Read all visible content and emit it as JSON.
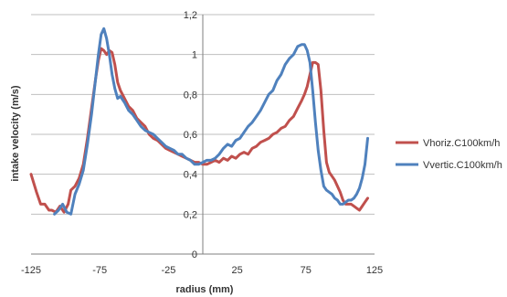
{
  "chart_data": {
    "type": "line",
    "xlabel": "radius (mm)",
    "ylabel": "intake velocity (m/s)",
    "xlim": [
      -125,
      125
    ],
    "ylim": [
      0,
      1.2
    ],
    "x_ticks": [
      "-125",
      "-75",
      "-25",
      "25",
      "75",
      "125"
    ],
    "y_ticks": [
      "0",
      "0,2",
      "0,4",
      "0,6",
      "0,8",
      "1",
      "1,2"
    ],
    "grid": "horizontal",
    "legend_position": "right",
    "series": [
      {
        "name": "Vhoriz.C100km/h",
        "color": "#c0504d",
        "x": [
          -125,
          -121,
          -118,
          -115,
          -112,
          -110,
          -107,
          -104,
          -101,
          -98,
          -96,
          -93,
          -90,
          -87,
          -84,
          -81,
          -78,
          -76,
          -74,
          -72,
          -70,
          -68,
          -66,
          -64,
          -62,
          -60,
          -57,
          -54,
          -51,
          -48,
          -45,
          -42,
          -39,
          -36,
          -33,
          -30,
          -27,
          -24,
          -21,
          -18,
          -15,
          -12,
          -9,
          -6,
          -3,
          0,
          3,
          6,
          9,
          12,
          15,
          18,
          21,
          24,
          27,
          30,
          33,
          36,
          39,
          42,
          45,
          48,
          51,
          54,
          57,
          60,
          63,
          66,
          69,
          72,
          74,
          76,
          78,
          80,
          82,
          84,
          86,
          88,
          90,
          92,
          94,
          96,
          98,
          100,
          102,
          104,
          106,
          108,
          110,
          112,
          114,
          116,
          118,
          120
        ],
        "values": [
          0.4,
          0.31,
          0.25,
          0.25,
          0.22,
          0.22,
          0.21,
          0.24,
          0.21,
          0.25,
          0.32,
          0.34,
          0.38,
          0.45,
          0.58,
          0.73,
          0.88,
          0.97,
          1.03,
          1.02,
          1.0,
          1.02,
          1.01,
          0.95,
          0.86,
          0.82,
          0.78,
          0.74,
          0.72,
          0.68,
          0.66,
          0.64,
          0.6,
          0.58,
          0.57,
          0.55,
          0.53,
          0.52,
          0.51,
          0.5,
          0.49,
          0.48,
          0.47,
          0.46,
          0.46,
          0.45,
          0.45,
          0.46,
          0.47,
          0.46,
          0.48,
          0.47,
          0.49,
          0.48,
          0.5,
          0.51,
          0.5,
          0.53,
          0.54,
          0.56,
          0.57,
          0.58,
          0.6,
          0.61,
          0.63,
          0.64,
          0.67,
          0.69,
          0.73,
          0.77,
          0.8,
          0.84,
          0.9,
          0.96,
          0.96,
          0.95,
          0.82,
          0.62,
          0.46,
          0.41,
          0.39,
          0.37,
          0.34,
          0.31,
          0.27,
          0.25,
          0.25,
          0.25,
          0.24,
          0.23,
          0.22,
          0.24,
          0.26,
          0.28
        ]
      },
      {
        "name": "Vvertic.C100km/h",
        "color": "#4f81bd",
        "x": [
          -108,
          -105,
          -102,
          -99,
          -96,
          -93,
          -90,
          -87,
          -84,
          -81,
          -78,
          -76,
          -74,
          -72,
          -70,
          -68,
          -66,
          -64,
          -62,
          -60,
          -57,
          -54,
          -51,
          -48,
          -45,
          -42,
          -39,
          -36,
          -33,
          -30,
          -27,
          -24,
          -21,
          -18,
          -15,
          -12,
          -9,
          -6,
          -3,
          0,
          3,
          6,
          9,
          12,
          15,
          18,
          21,
          24,
          27,
          30,
          33,
          36,
          39,
          42,
          45,
          48,
          51,
          54,
          57,
          60,
          63,
          66,
          69,
          72,
          74,
          76,
          78,
          80,
          82,
          84,
          86,
          88,
          90,
          92,
          94,
          96,
          98,
          100,
          102,
          104,
          106,
          108,
          110,
          112,
          114,
          116,
          118,
          120
        ],
        "values": [
          0.2,
          0.22,
          0.25,
          0.21,
          0.2,
          0.3,
          0.35,
          0.42,
          0.55,
          0.7,
          0.88,
          1.0,
          1.1,
          1.13,
          1.08,
          1.0,
          0.9,
          0.83,
          0.78,
          0.79,
          0.76,
          0.72,
          0.7,
          0.67,
          0.64,
          0.62,
          0.61,
          0.6,
          0.58,
          0.56,
          0.54,
          0.53,
          0.52,
          0.5,
          0.5,
          0.48,
          0.47,
          0.45,
          0.45,
          0.46,
          0.47,
          0.47,
          0.48,
          0.5,
          0.53,
          0.55,
          0.54,
          0.57,
          0.58,
          0.61,
          0.64,
          0.66,
          0.69,
          0.72,
          0.76,
          0.8,
          0.82,
          0.87,
          0.9,
          0.95,
          0.98,
          1.0,
          1.04,
          1.05,
          1.05,
          1.02,
          0.96,
          0.82,
          0.66,
          0.52,
          0.42,
          0.34,
          0.32,
          0.31,
          0.3,
          0.28,
          0.27,
          0.25,
          0.25,
          0.26,
          0.27,
          0.27,
          0.28,
          0.3,
          0.33,
          0.38,
          0.45,
          0.58
        ]
      }
    ]
  }
}
